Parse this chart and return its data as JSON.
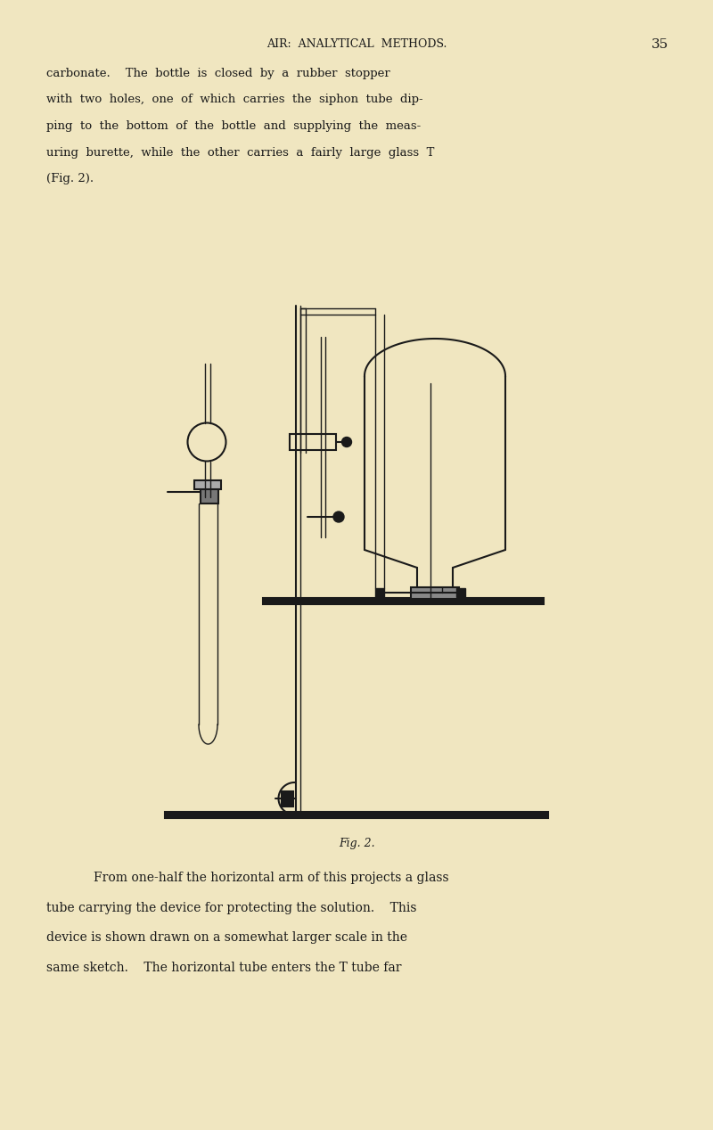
{
  "bg_color": "#f0e6c0",
  "ink_color": "#1a1a1a",
  "page_width": 8.0,
  "page_height": 12.68,
  "header_text": "AIR:  ANALYTICAL  METHODS.",
  "page_number": "35",
  "body_text_top": [
    "carbonate.    The  bottle  is  closed  by  a  rubber  stopper",
    "with  two  holes,  one  of  which  carries  the  siphon  tube  dip-",
    "ping  to  the  bottom  of  the  bottle  and  supplying  the  meas-",
    "uring  burette,  while  the  other  carries  a  fairly  large  glass  T",
    "(Fig. 2)."
  ],
  "fig_caption": "Fig. 2.",
  "body_text_bottom": [
    "From one-half the horizontal arm of this projects a glass",
    "tube carrying the device for protecting the solution.    This",
    "device is shown drawn on a somewhat larger scale in the",
    "same sketch.    The horizontal tube enters the T tube far"
  ]
}
